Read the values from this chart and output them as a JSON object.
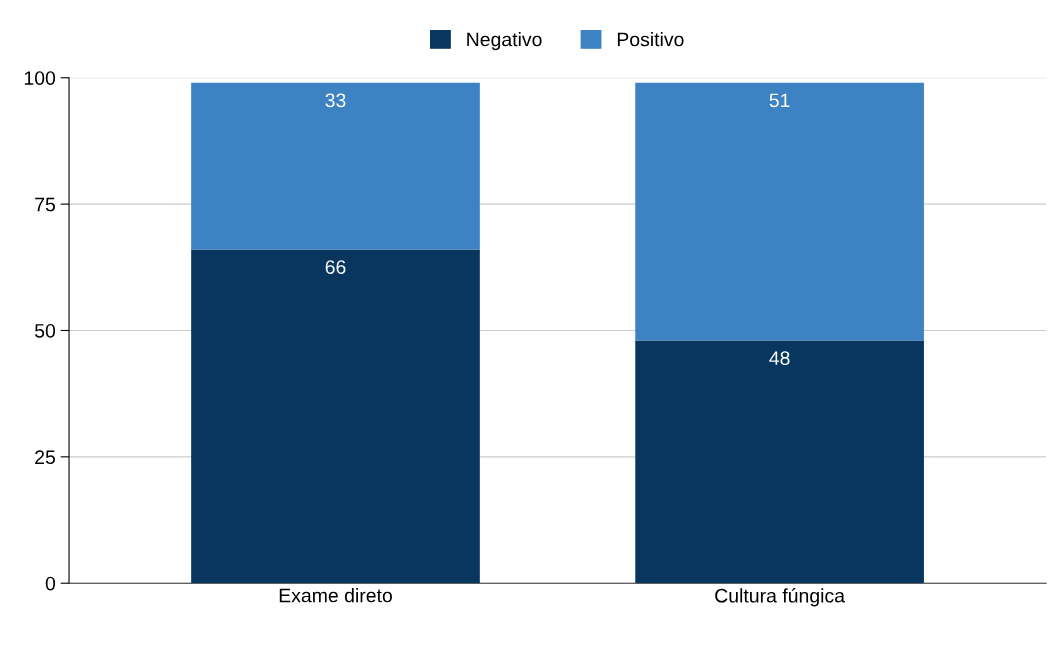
{
  "chart_data": {
    "type": "bar",
    "stacked": true,
    "categories": [
      "Exame direto",
      "Cultura fúngica"
    ],
    "series": [
      {
        "name": "Negativo",
        "color": "#08365e",
        "values": [
          66,
          48
        ]
      },
      {
        "name": "Positivo",
        "color": "#3d82c2",
        "values": [
          33,
          51
        ]
      }
    ],
    "ylim": [
      0,
      100
    ],
    "yticks": [
      0,
      25,
      50,
      75,
      100
    ],
    "grid": "y",
    "legend": "top",
    "data_labels": true
  }
}
